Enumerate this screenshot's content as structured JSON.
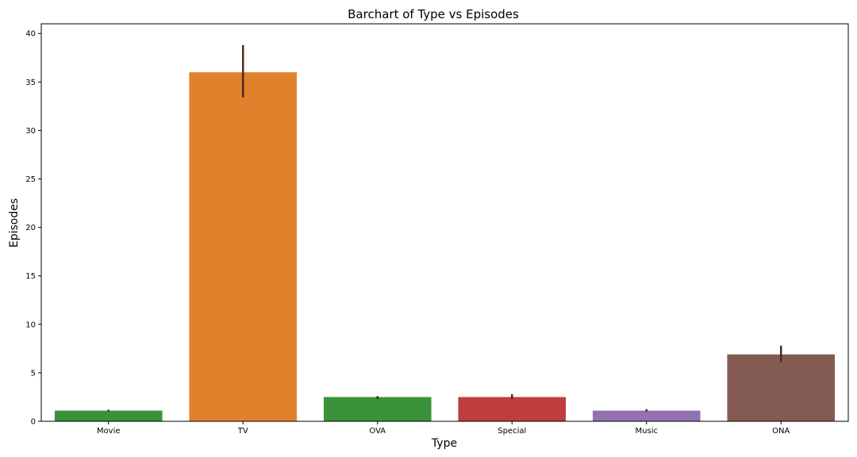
{
  "chart_data": {
    "type": "bar",
    "title": "Barchart of Type vs Episodes",
    "xlabel": "Type",
    "ylabel": "Episodes",
    "ylim": [
      0,
      41
    ],
    "yticks": [
      0,
      5,
      10,
      15,
      20,
      25,
      30,
      35,
      40
    ],
    "grid": false,
    "categories": [
      "Movie",
      "TV",
      "OVA",
      "Special",
      "Music",
      "ONA"
    ],
    "values": [
      1.1,
      36.0,
      2.5,
      2.5,
      1.1,
      6.9
    ],
    "error_low": [
      1.0,
      33.4,
      2.3,
      2.3,
      1.0,
      6.1
    ],
    "error_high": [
      1.2,
      38.8,
      2.6,
      2.8,
      1.25,
      7.8
    ],
    "colors": [
      "#3a923a",
      "#e1812c",
      "#3a923a",
      "#c03d3e",
      "#9372b2",
      "#845b53"
    ],
    "error_color": "#4d2a1f"
  }
}
